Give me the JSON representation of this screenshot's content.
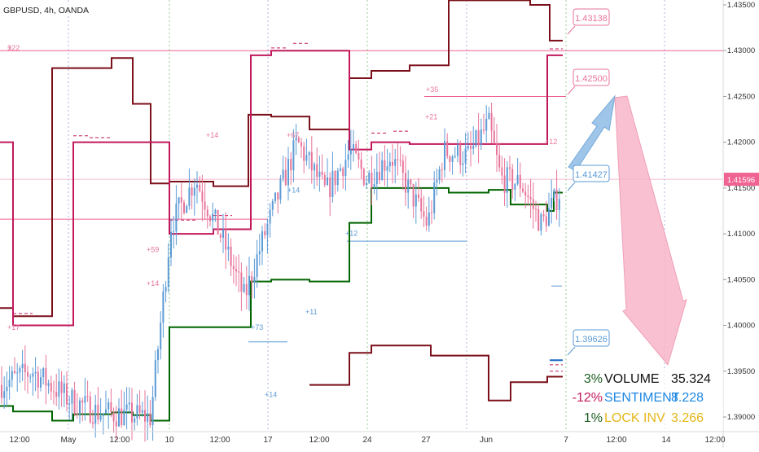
{
  "header": {
    "symbol_line": "GBPUSD, 4h, OANDA"
  },
  "colors": {
    "up": "#5b9bd5",
    "down": "#e8749a",
    "high_level": "#7b0f1a",
    "low_level": "#006400",
    "mid_level": "#c2185b",
    "pink_line": "#f06292",
    "blue_line": "#5b9bd5",
    "sentiment_blue": "#1e88e5",
    "lock_gold": "#e6b619",
    "volume_dark": "#111111",
    "pct_green": "#1b5e20",
    "pct_red": "#c2185b"
  },
  "chart_data": {
    "type": "candlestick",
    "x_ticks": [
      "12:00",
      "May",
      "12:00",
      "10",
      "12:00",
      "17",
      "12:00",
      "24",
      "27",
      "Jun",
      "7",
      "12:00",
      "14",
      "12:00"
    ],
    "y_ticks": [
      "1.43500",
      "1.43000",
      "1.42500",
      "1.42000",
      "1.41500",
      "1.41000",
      "1.40500",
      "1.40000",
      "1.39500",
      "1.39000"
    ],
    "y_range": [
      1.3885,
      1.4355
    ],
    "price_labels": [
      {
        "value": 1.43138,
        "text": "1.43138",
        "color": "#e8749a"
      },
      {
        "value": 1.425,
        "text": "1.42500",
        "color": "#e8749a"
      },
      {
        "value": 1.41427,
        "text": "1.41427",
        "color": "#5b9bd5"
      },
      {
        "value": 1.39626,
        "text": "1.39626",
        "color": "#5b9bd5"
      }
    ],
    "last_price": {
      "value": 1.41596,
      "text": "1.41596"
    },
    "annotations": [
      "+22",
      "+14",
      "+67",
      "+12",
      "+14",
      "+59",
      "+14",
      "+11",
      "+35",
      "+21",
      "+12",
      "+14",
      "+17",
      "+73",
      "3"
    ],
    "stats": [
      {
        "pct": "3%",
        "name": "VOLUME",
        "value": "35.324"
      },
      {
        "pct": "-12%",
        "name": "SENTIMENT",
        "value": "8.228"
      },
      {
        "pct": "1%",
        "name": "LOCK INV",
        "value": "3.266"
      }
    ]
  }
}
